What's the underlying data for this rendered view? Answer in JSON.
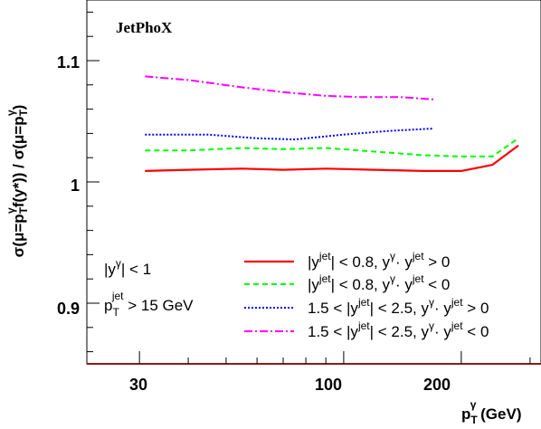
{
  "chart_data": {
    "type": "line",
    "title": "JetPhoX",
    "xlabel": {
      "main": "p",
      "sub": "T",
      "sup": "γ",
      "unit": " (GeV)"
    },
    "ylabel": {
      "p1": "σ(μ=p",
      "sub1": "T",
      "sup1": "γ",
      "p2": "f(y*)) / σ(μ=p",
      "sub2": "T",
      "sup2": "γ",
      "p3": ")"
    },
    "x_scale": "log",
    "xlim": [
      22,
      320
    ],
    "ylim": [
      0.85,
      1.15
    ],
    "x_ticks": [
      30,
      100,
      200
    ],
    "x_tick_labels": [
      "30",
      "100",
      "200"
    ],
    "y_ticks": [
      0.9,
      1.0,
      1.1
    ],
    "y_tick_labels": [
      "0.9",
      "1",
      "1.1"
    ],
    "grid": false,
    "legend_position": "bottom-right",
    "conditions": {
      "line1": {
        "pre": "|y",
        "sup": "γ",
        "post": "| < 1"
      },
      "line2": {
        "pre": "p",
        "sub": "T",
        "sup": "jet",
        "post": " > 15 GeV"
      }
    },
    "series": [
      {
        "name": "|y^jet| < 0.8, y^γ·y^jet > 0",
        "label": {
          "a": "|y",
          "sup1": "jet",
          "b": "| < 0.8,  y",
          "sup2": "γ",
          "c": "· y",
          "sup3": "jet",
          "d": " > 0"
        },
        "color": "#ff0000",
        "dash": "",
        "width": 2.2,
        "x": [
          31,
          40,
          55,
          70,
          90,
          120,
          160,
          200,
          240,
          280
        ],
        "y": [
          1.009,
          1.01,
          1.011,
          1.01,
          1.011,
          1.01,
          1.009,
          1.009,
          1.014,
          1.03
        ]
      },
      {
        "name": "|y^jet| < 0.8, y^γ·y^jet < 0",
        "label": {
          "a": "|y",
          "sup1": "jet",
          "b": "| < 0.8,  y",
          "sup2": "γ",
          "c": "· y",
          "sup3": "jet",
          "d": " < 0"
        },
        "color": "#00ff00",
        "dash": "6,4",
        "width": 2,
        "x": [
          31,
          40,
          55,
          70,
          90,
          120,
          160,
          200,
          240,
          280
        ],
        "y": [
          1.026,
          1.026,
          1.028,
          1.027,
          1.028,
          1.025,
          1.022,
          1.021,
          1.021,
          1.036
        ]
      },
      {
        "name": "1.5 < |y^jet| < 2.5, y^γ·y^jet > 0",
        "label": {
          "a": "1.5 < |y",
          "sup1": "jet",
          "b": "| < 2.5,  y",
          "sup2": "γ",
          "c": "· y",
          "sup3": "jet",
          "d": " > 0"
        },
        "color": "#0000ff",
        "dash": "2,2",
        "width": 2,
        "x": [
          31,
          45,
          60,
          75,
          100,
          130,
          170
        ],
        "y": [
          1.039,
          1.039,
          1.036,
          1.035,
          1.039,
          1.042,
          1.044
        ]
      },
      {
        "name": "1.5 < |y^jet| < 2.5, y^γ·y^jet < 0",
        "label": {
          "a": "1.5 < |y",
          "sup1": "jet",
          "b": "| < 2.5,  y",
          "sup2": "γ",
          "c": "· y",
          "sup3": "jet",
          "d": " < 0"
        },
        "color": "#ff00ff",
        "dash": "9,3,2,3",
        "width": 2,
        "x": [
          31,
          40,
          55,
          70,
          90,
          110,
          140,
          170
        ],
        "y": [
          1.087,
          1.084,
          1.078,
          1.074,
          1.071,
          1.07,
          1.07,
          1.068
        ]
      }
    ]
  }
}
